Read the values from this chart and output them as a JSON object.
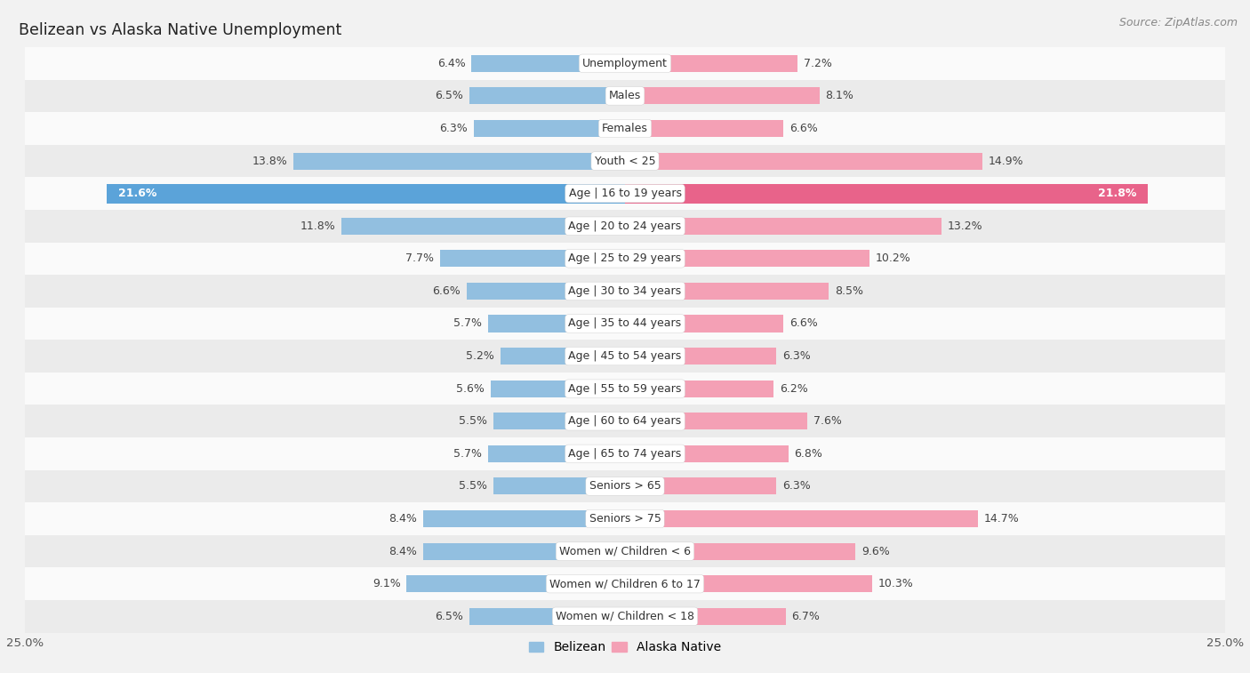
{
  "title": "Belizean vs Alaska Native Unemployment",
  "source": "Source: ZipAtlas.com",
  "categories": [
    "Unemployment",
    "Males",
    "Females",
    "Youth < 25",
    "Age | 16 to 19 years",
    "Age | 20 to 24 years",
    "Age | 25 to 29 years",
    "Age | 30 to 34 years",
    "Age | 35 to 44 years",
    "Age | 45 to 54 years",
    "Age | 55 to 59 years",
    "Age | 60 to 64 years",
    "Age | 65 to 74 years",
    "Seniors > 65",
    "Seniors > 75",
    "Women w/ Children < 6",
    "Women w/ Children 6 to 17",
    "Women w/ Children < 18"
  ],
  "belizean": [
    6.4,
    6.5,
    6.3,
    13.8,
    21.6,
    11.8,
    7.7,
    6.6,
    5.7,
    5.2,
    5.6,
    5.5,
    5.7,
    5.5,
    8.4,
    8.4,
    9.1,
    6.5
  ],
  "alaska_native": [
    7.2,
    8.1,
    6.6,
    14.9,
    21.8,
    13.2,
    10.2,
    8.5,
    6.6,
    6.3,
    6.2,
    7.6,
    6.8,
    6.3,
    14.7,
    9.6,
    10.3,
    6.7
  ],
  "belizean_color": "#92bfe0",
  "alaska_native_color": "#f4a0b5",
  "alaska_native_highlight": "#e8638a",
  "belizean_highlight": "#5ba3d9",
  "background_color": "#f2f2f2",
  "row_color_light": "#fafafa",
  "row_color_dark": "#ebebeb",
  "axis_max": 25.0,
  "bar_height": 0.52,
  "label_fontsize": 9.0,
  "title_fontsize": 12.5,
  "source_fontsize": 9.0,
  "highlight_rows": [
    4
  ]
}
